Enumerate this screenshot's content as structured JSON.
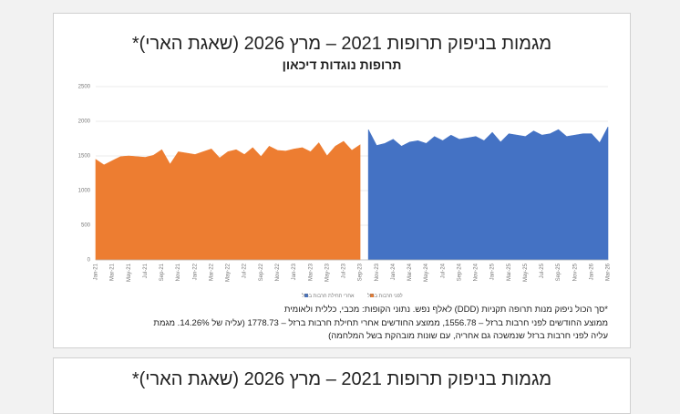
{
  "chart_data": {
    "type": "area",
    "title": "מגמות בניפוק תרופות 2021 – מרץ 2026 (שאגת הארי)*",
    "subtitle": "תרופות נוגדות דיכאון",
    "categories": [
      "Jan-21",
      null,
      "Mar-21",
      null,
      "May-21",
      null,
      "Jul-21",
      null,
      "Sep-21",
      null,
      "Nov-21",
      null,
      "Jan-22",
      null,
      "Mar-22",
      null,
      "May-22",
      null,
      "Jul-22",
      null,
      "Sep-22",
      null,
      "Nov-22",
      null,
      "Jan-23",
      null,
      "Mar-23",
      null,
      "May-23",
      null,
      "Jul-23",
      null,
      "Sep-23",
      null,
      "Nov-23",
      null,
      "Jan-24",
      null,
      "Mar-24",
      null,
      "May-24",
      null,
      "Jul-24",
      null,
      "Sep-24",
      null,
      "Nov-24",
      null,
      "Jan-25",
      null,
      "Mar-25",
      null,
      "May-25",
      null,
      "Jul-25",
      null,
      "Sep-25",
      null,
      "Nov-25",
      null,
      "Jan-26",
      null,
      "Mar-26"
    ],
    "series": [
      {
        "name": "לפני חרבות ברזל",
        "color": "#ed7d31",
        "values": [
          1450,
          1370,
          1430,
          1490,
          1500,
          1490,
          1480,
          1510,
          1590,
          1380,
          1560,
          1540,
          1520,
          1560,
          1600,
          1470,
          1560,
          1590,
          1520,
          1620,
          1490,
          1640,
          1580,
          1570,
          1600,
          1620,
          1560,
          1690,
          1500,
          1640,
          1710,
          1580,
          1660,
          null,
          null,
          null,
          null,
          null,
          null,
          null,
          null,
          null,
          null,
          null,
          null,
          null,
          null,
          null,
          null,
          null,
          null,
          null,
          null,
          null,
          null,
          null,
          null,
          null,
          null,
          null,
          null,
          null,
          null
        ]
      },
      {
        "name": "אחרי תחילת חרבות ברזל",
        "color": "#4472c4",
        "values": [
          null,
          null,
          null,
          null,
          null,
          null,
          null,
          null,
          null,
          null,
          null,
          null,
          null,
          null,
          null,
          null,
          null,
          null,
          null,
          null,
          null,
          null,
          null,
          null,
          null,
          null,
          null,
          null,
          null,
          null,
          null,
          null,
          null,
          1880,
          1650,
          1680,
          1740,
          1640,
          1700,
          1720,
          1680,
          1780,
          1720,
          1800,
          1740,
          1760,
          1780,
          1720,
          1840,
          1700,
          1820,
          1800,
          1780,
          1860,
          1800,
          1820,
          1880,
          1780,
          1800,
          1820,
          1820,
          1690,
          1920
        ]
      }
    ],
    "ylim": [
      0,
      2500
    ],
    "yticks": [
      0,
      500,
      1000,
      1500,
      2000,
      2500
    ],
    "grid": true,
    "notes": [
      "*סך הכול ניפוק מנות תרופה תקניות (DDD) לאלף נפש. נתוני הקופות: מכבי, כללית ולאומית",
      "ממוצע החודשים לפני חרבות ברזל – 1556.78, ממוצע החודשים אחרי תחילת חרבות ברזל – 1778.73 (עליה של 14.26%. מגמת",
      "עליה לפני חרבות ברזל שנמשכה גם אחריה, עם שונות מובהקת בשל המלחמה)"
    ]
  },
  "next_card": {
    "title": "מגמות בניפוק תרופות 2021 – מרץ 2026 (שאגת הארי)*"
  }
}
